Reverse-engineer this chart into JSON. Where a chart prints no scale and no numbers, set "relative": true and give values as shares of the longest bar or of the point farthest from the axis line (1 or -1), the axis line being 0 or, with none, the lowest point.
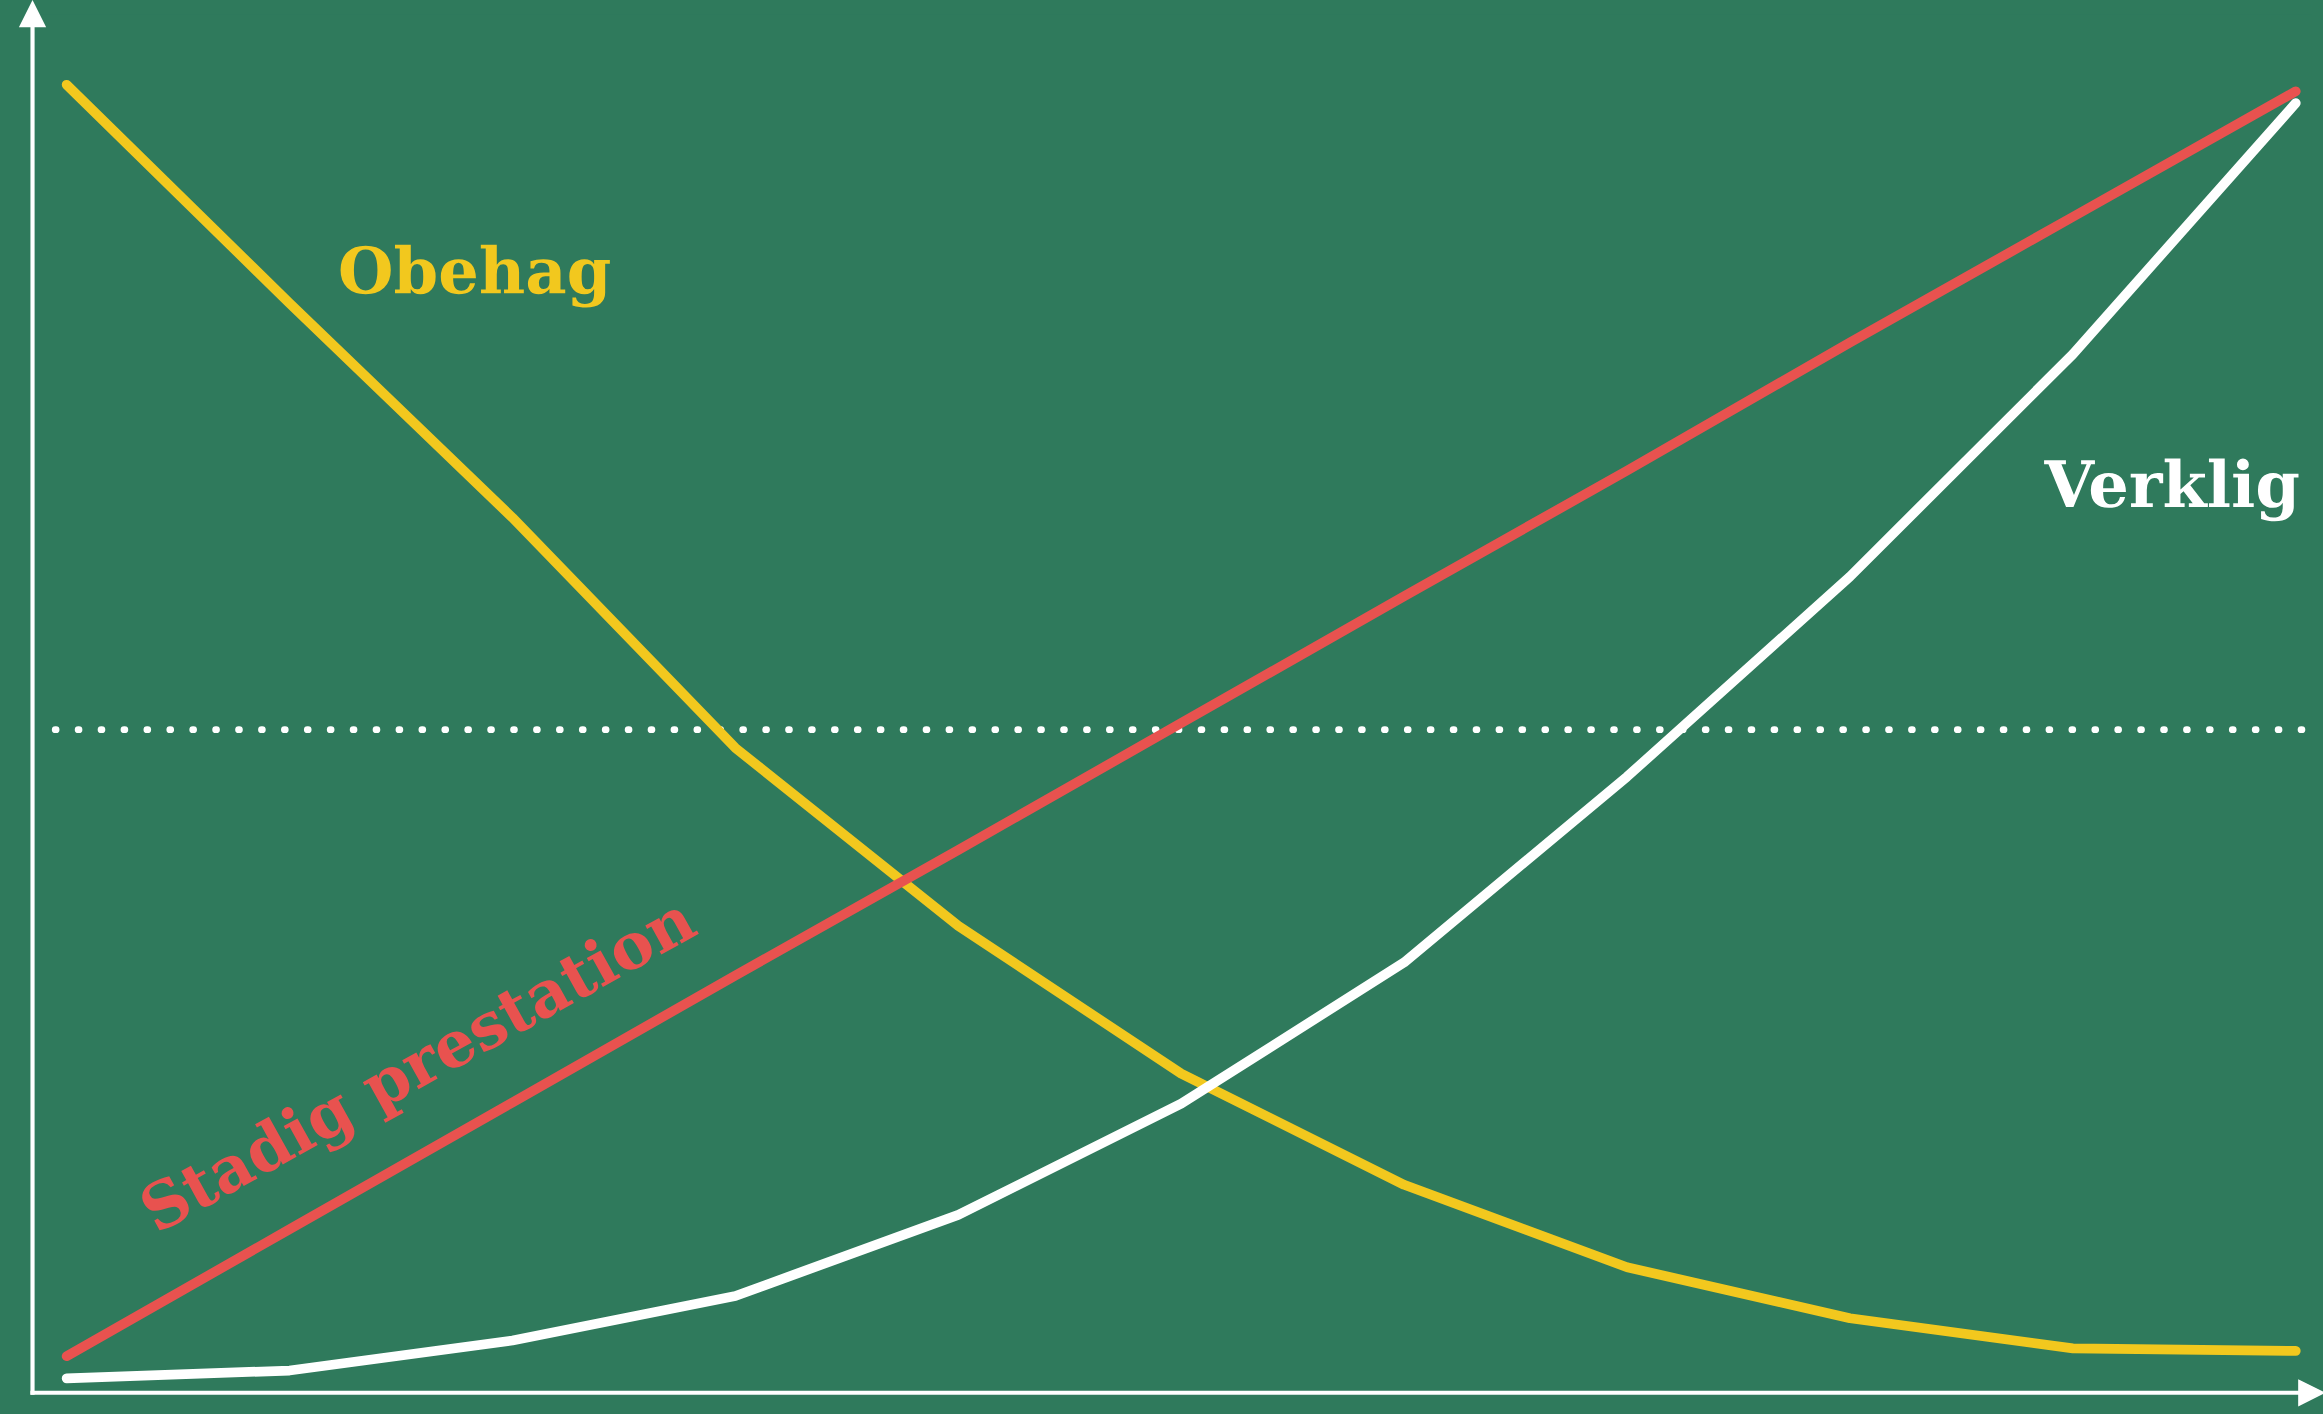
{
  "chart_data": {
    "type": "line",
    "relative": true,
    "legend": false,
    "grid": false,
    "categories": [
      null,
      null,
      null,
      null,
      null,
      null,
      null,
      null,
      null,
      null,
      null
    ],
    "series": [
      {
        "name": "Obehag",
        "color": "#f2c81e",
        "values": [
          1.0,
          0.833,
          0.669,
          0.493,
          0.357,
          0.244,
          0.159,
          0.096,
          0.057,
          0.034,
          0.032
        ]
      },
      {
        "name": "Stadig prestation",
        "color": "#e8524f",
        "values": [
          0.028,
          0.125,
          0.222,
          0.319,
          0.415,
          0.512,
          0.609,
          0.705,
          0.803,
          0.899,
          0.995
        ]
      },
      {
        "name": "Verklig",
        "color": "#ffffff",
        "values": [
          0.011,
          0.017,
          0.04,
          0.074,
          0.136,
          0.221,
          0.329,
          0.471,
          0.624,
          0.794,
          0.986
        ]
      }
    ],
    "ref_lines": [
      {
        "axis": "y",
        "value": 0.507,
        "color": "#ffffff",
        "line_style": "dotted"
      }
    ]
  }
}
